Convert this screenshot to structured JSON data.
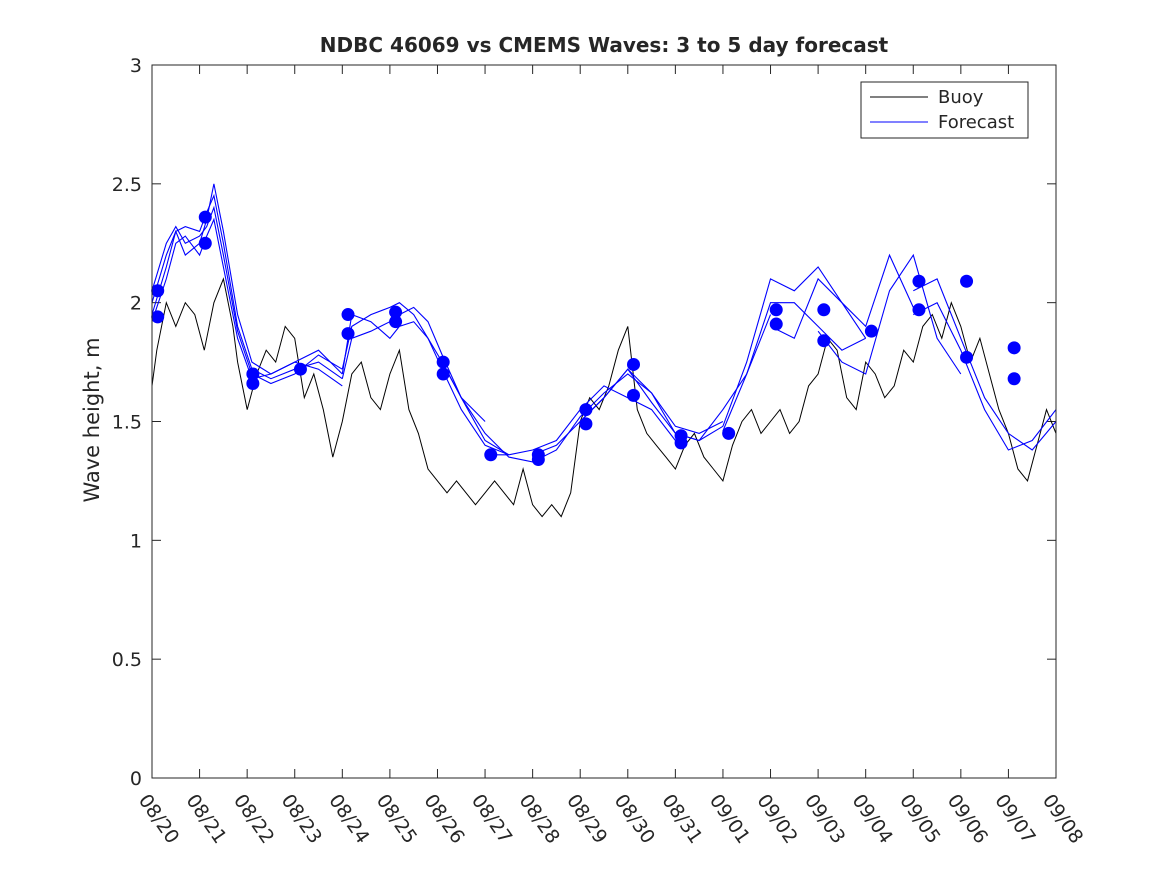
{
  "chart_data": {
    "type": "line",
    "title": "NDBC 46069 vs CMEMS Waves: 3 to 5 day forecast",
    "xlabel": "",
    "ylabel": "Wave height, m",
    "xlim": [
      0,
      19
    ],
    "ylim": [
      0,
      3
    ],
    "yticks": [
      0,
      0.5,
      1,
      1.5,
      2,
      2.5,
      3
    ],
    "ytick_labels": [
      "0",
      "0.5",
      "1",
      "1.5",
      "2",
      "2.5",
      "3"
    ],
    "xtick_labels": [
      "08/20",
      "08/21",
      "08/22",
      "08/23",
      "08/24",
      "08/25",
      "08/26",
      "08/27",
      "08/28",
      "08/29",
      "08/30",
      "08/31",
      "09/01",
      "09/02",
      "09/03",
      "09/04",
      "09/05",
      "09/06",
      "09/07",
      "09/08"
    ],
    "legend": {
      "position": "top-right",
      "entries": [
        {
          "label": "Buoy",
          "color": "#000000"
        },
        {
          "label": "Forecast",
          "color": "#0000ff"
        }
      ]
    },
    "colors": {
      "buoy": "#000000",
      "forecast": "#0000ff",
      "marker": "#0000ff"
    },
    "buoy": {
      "name": "Buoy",
      "x": [
        0,
        0.1,
        0.3,
        0.5,
        0.7,
        0.9,
        1.1,
        1.3,
        1.5,
        1.7,
        1.8,
        2.0,
        2.2,
        2.4,
        2.6,
        2.8,
        3.0,
        3.2,
        3.4,
        3.6,
        3.8,
        4.0,
        4.2,
        4.4,
        4.6,
        4.8,
        5.0,
        5.2,
        5.4,
        5.6,
        5.8,
        6.0,
        6.2,
        6.4,
        6.6,
        6.8,
        7.0,
        7.2,
        7.4,
        7.6,
        7.8,
        8.0,
        8.2,
        8.4,
        8.6,
        8.8,
        9.0,
        9.2,
        9.4,
        9.6,
        9.8,
        10.0,
        10.2,
        10.4,
        10.6,
        10.8,
        11.0,
        11.2,
        11.4,
        11.6,
        11.8,
        12.0,
        12.2,
        12.4,
        12.6,
        12.8,
        13.0,
        13.2,
        13.4,
        13.6,
        13.8,
        14.0,
        14.2,
        14.4,
        14.6,
        14.8,
        15.0,
        15.2,
        15.4,
        15.6,
        15.8,
        16.0,
        16.2,
        16.4,
        16.6,
        16.8,
        17.0,
        17.2,
        17.4,
        17.6,
        17.8,
        18.0,
        18.2,
        18.4,
        18.6,
        18.8,
        19.0
      ],
      "values": [
        1.65,
        1.8,
        2.0,
        1.9,
        2.0,
        1.95,
        1.8,
        2.0,
        2.1,
        1.9,
        1.75,
        1.55,
        1.7,
        1.8,
        1.75,
        1.9,
        1.85,
        1.6,
        1.7,
        1.55,
        1.35,
        1.5,
        1.7,
        1.75,
        1.6,
        1.55,
        1.7,
        1.8,
        1.55,
        1.45,
        1.3,
        1.25,
        1.2,
        1.25,
        1.2,
        1.15,
        1.2,
        1.25,
        1.2,
        1.15,
        1.3,
        1.15,
        1.1,
        1.15,
        1.1,
        1.2,
        1.5,
        1.6,
        1.55,
        1.65,
        1.8,
        1.9,
        1.55,
        1.45,
        1.4,
        1.35,
        1.3,
        1.4,
        1.45,
        1.35,
        1.3,
        1.25,
        1.4,
        1.5,
        1.55,
        1.45,
        1.5,
        1.55,
        1.45,
        1.5,
        1.65,
        1.7,
        1.85,
        1.8,
        1.6,
        1.55,
        1.75,
        1.7,
        1.6,
        1.65,
        1.8,
        1.75,
        1.9,
        1.95,
        1.85,
        2.0,
        1.9,
        1.75,
        1.85,
        1.7,
        1.55,
        1.45,
        1.3,
        1.25,
        1.4,
        1.55,
        1.45
      ]
    },
    "forecast_series": [
      {
        "name": "Forecast",
        "x": [
          0,
          0.3,
          0.5,
          0.7,
          1.0,
          1.15,
          1.3,
          1.5,
          1.8,
          2.1,
          2.5,
          3.0,
          3.5,
          4.0
        ],
        "values": [
          2.0,
          2.2,
          2.3,
          2.2,
          2.25,
          2.35,
          2.5,
          2.3,
          1.95,
          1.75,
          1.7,
          1.75,
          1.72,
          1.65
        ]
      },
      {
        "name": "Forecast",
        "x": [
          0,
          0.3,
          0.5,
          0.7,
          1.0,
          1.15,
          1.3,
          1.5,
          1.8,
          2.1,
          2.5,
          3.0,
          3.5,
          4.0
        ],
        "values": [
          1.95,
          2.15,
          2.3,
          2.32,
          2.3,
          2.38,
          2.45,
          2.25,
          1.9,
          1.72,
          1.68,
          1.72,
          1.75,
          1.68
        ]
      },
      {
        "name": "Forecast",
        "x": [
          0,
          0.3,
          0.5,
          0.7,
          1.0,
          1.15,
          1.3,
          1.5,
          1.8,
          2.1,
          2.5,
          3.0,
          3.5,
          4.0
        ],
        "values": [
          1.92,
          2.1,
          2.25,
          2.28,
          2.2,
          2.28,
          2.35,
          2.15,
          1.85,
          1.68,
          1.7,
          1.75,
          1.8,
          1.7
        ]
      },
      {
        "name": "Forecast",
        "x": [
          0,
          0.3,
          0.5,
          0.7,
          1.0,
          1.15,
          1.3,
          1.5,
          1.8,
          2.1,
          2.5,
          3.0,
          3.5,
          4.0
        ],
        "values": [
          2.05,
          2.25,
          2.32,
          2.25,
          2.28,
          2.32,
          2.4,
          2.2,
          1.88,
          1.7,
          1.66,
          1.7,
          1.78,
          1.72
        ]
      },
      {
        "name": "Forecast",
        "x": [
          4.0,
          4.2,
          4.6,
          5.0,
          5.2,
          5.5,
          5.8,
          6.1,
          6.5,
          7.0
        ],
        "values": [
          1.72,
          1.9,
          1.95,
          1.98,
          2.0,
          1.95,
          1.85,
          1.75,
          1.6,
          1.5
        ]
      },
      {
        "name": "Forecast",
        "x": [
          4.0,
          4.2,
          4.6,
          5.0,
          5.2,
          5.5,
          5.8,
          6.1,
          6.5,
          7.0,
          7.5
        ],
        "values": [
          1.68,
          1.85,
          1.88,
          1.92,
          1.95,
          1.98,
          1.92,
          1.78,
          1.6,
          1.42,
          1.36
        ]
      },
      {
        "name": "Forecast",
        "x": [
          4.0,
          4.2,
          4.6,
          5.0,
          5.2,
          5.5,
          5.8,
          6.1,
          6.5,
          7.0,
          7.5
        ],
        "values": [
          1.7,
          1.95,
          1.92,
          1.85,
          1.9,
          1.92,
          1.85,
          1.72,
          1.55,
          1.4,
          1.36
        ]
      },
      {
        "name": "Forecast",
        "x": [
          6.1,
          6.5,
          7.0,
          7.5,
          8.0,
          8.5,
          9.0,
          9.5,
          10.0,
          10.5,
          11.0
        ],
        "values": [
          1.75,
          1.6,
          1.45,
          1.35,
          1.33,
          1.38,
          1.52,
          1.62,
          1.7,
          1.62,
          1.45
        ]
      },
      {
        "name": "Forecast",
        "x": [
          7.0,
          7.5,
          8.0,
          8.5,
          9.0,
          9.5,
          10.0,
          10.5,
          11.0
        ],
        "values": [
          1.36,
          1.36,
          1.38,
          1.42,
          1.55,
          1.65,
          1.6,
          1.55,
          1.42
        ]
      },
      {
        "name": "Forecast",
        "x": [
          8.0,
          8.5,
          9.0,
          9.5,
          10.0,
          10.5,
          11.0,
          11.5,
          12.0
        ],
        "values": [
          1.36,
          1.4,
          1.5,
          1.6,
          1.72,
          1.62,
          1.48,
          1.45,
          1.5
        ]
      },
      {
        "name": "Forecast",
        "x": [
          9.0,
          9.5,
          10.0,
          10.5,
          11.0,
          11.5,
          12.0,
          12.5,
          13.0
        ],
        "values": [
          1.5,
          1.6,
          1.72,
          1.58,
          1.45,
          1.42,
          1.55,
          1.7,
          1.95
        ]
      },
      {
        "name": "Forecast",
        "x": [
          11.0,
          11.5,
          12.0,
          12.5,
          13.0,
          13.5,
          14.0,
          14.5,
          15.0
        ],
        "values": [
          1.45,
          1.42,
          1.48,
          1.75,
          2.1,
          2.05,
          2.15,
          2.0,
          1.85
        ]
      },
      {
        "name": "Forecast",
        "x": [
          12.0,
          12.5,
          13.0,
          13.5,
          14.0,
          14.5,
          15.0
        ],
        "values": [
          1.46,
          1.7,
          2.0,
          2.0,
          1.9,
          1.8,
          1.85
        ]
      },
      {
        "name": "Forecast",
        "x": [
          13.0,
          13.5,
          14.0,
          14.5,
          15.0,
          15.5,
          16.0
        ],
        "values": [
          1.9,
          1.85,
          2.1,
          2.0,
          1.9,
          2.2,
          1.98
        ]
      },
      {
        "name": "Forecast",
        "x": [
          14.0,
          14.5,
          15.0,
          15.5,
          16.0,
          16.5,
          17.0
        ],
        "values": [
          1.88,
          1.75,
          1.7,
          2.05,
          2.2,
          1.85,
          1.7
        ]
      },
      {
        "name": "Forecast",
        "x": [
          16.0,
          16.5,
          17.0,
          17.5,
          18.0,
          18.5,
          19.0
        ],
        "values": [
          2.05,
          2.1,
          1.85,
          1.6,
          1.45,
          1.38,
          1.5
        ]
      },
      {
        "name": "Forecast",
        "x": [
          16.0,
          16.5,
          17.0,
          17.5,
          18.0,
          18.5,
          19.0
        ],
        "values": [
          1.95,
          2.0,
          1.8,
          1.55,
          1.38,
          1.42,
          1.55
        ]
      }
    ],
    "forecast_markers": {
      "x": [
        0.12,
        0.12,
        1.12,
        1.12,
        2.12,
        2.12,
        3.12,
        4.12,
        4.12,
        5.12,
        5.12,
        6.12,
        6.12,
        7.12,
        8.12,
        8.12,
        9.12,
        9.12,
        10.12,
        10.12,
        11.12,
        11.12,
        12.12,
        13.12,
        13.12,
        14.12,
        14.12,
        15.12,
        16.12,
        16.12,
        17.12,
        17.12,
        18.12,
        18.12
      ],
      "values": [
        2.05,
        1.94,
        2.36,
        2.25,
        1.7,
        1.66,
        1.72,
        1.95,
        1.87,
        1.96,
        1.92,
        1.75,
        1.7,
        1.36,
        1.36,
        1.34,
        1.55,
        1.49,
        1.74,
        1.61,
        1.44,
        1.41,
        1.45,
        1.97,
        1.91,
        1.97,
        1.84,
        1.88,
        2.09,
        1.97,
        2.09,
        1.77,
        1.81,
        1.68
      ]
    }
  }
}
